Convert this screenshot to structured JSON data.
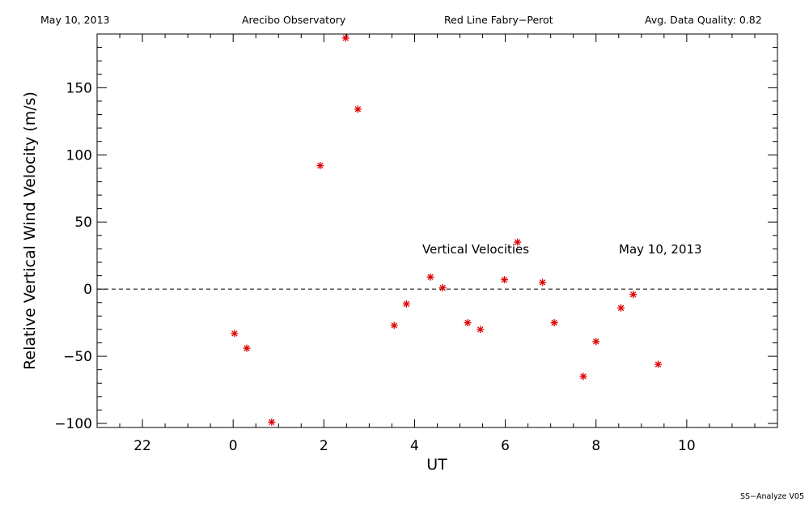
{
  "header": {
    "date": "May 10, 2013",
    "observatory": "Arecibo Observatory",
    "instrument": "Red Line Fabry−Perot",
    "quality": "Avg. Data Quality: 0.82"
  },
  "footer": {
    "program": "SS−Analyze V05"
  },
  "chart_data": {
    "type": "scatter",
    "xlabel": "UT",
    "ylabel": "Relative Vertical Wind Velocity (m/s)",
    "xlim": [
      -3,
      12
    ],
    "ylim": [
      -103,
      190
    ],
    "x_tick_labels": [
      "22",
      "0",
      "2",
      "4",
      "6",
      "8",
      "10"
    ],
    "y_tick_labels": [
      "−100",
      "−50",
      "0",
      "50",
      "100",
      "150"
    ],
    "grid": false,
    "reference_line": {
      "y": 0,
      "style": "dashed"
    },
    "marker": "asterisk",
    "marker_color": "#e00000",
    "annotations": {
      "series_label": "Vertical Velocities",
      "date_label": "May 10, 2013"
    },
    "series": [
      {
        "x": [
          0.03,
          0.3,
          0.85,
          1.92,
          2.48,
          2.75,
          3.55,
          3.82,
          4.35,
          4.62,
          5.17,
          5.45,
          5.98,
          6.27,
          6.82,
          7.08,
          7.72,
          8.0,
          8.55,
          8.82,
          9.37
        ],
        "y": [
          -33,
          -44,
          -99,
          92,
          187,
          134,
          -27,
          -11,
          9,
          1,
          -25,
          -30,
          7,
          35,
          5,
          -25,
          -65,
          -39,
          -14,
          -4,
          -56
        ]
      }
    ]
  }
}
